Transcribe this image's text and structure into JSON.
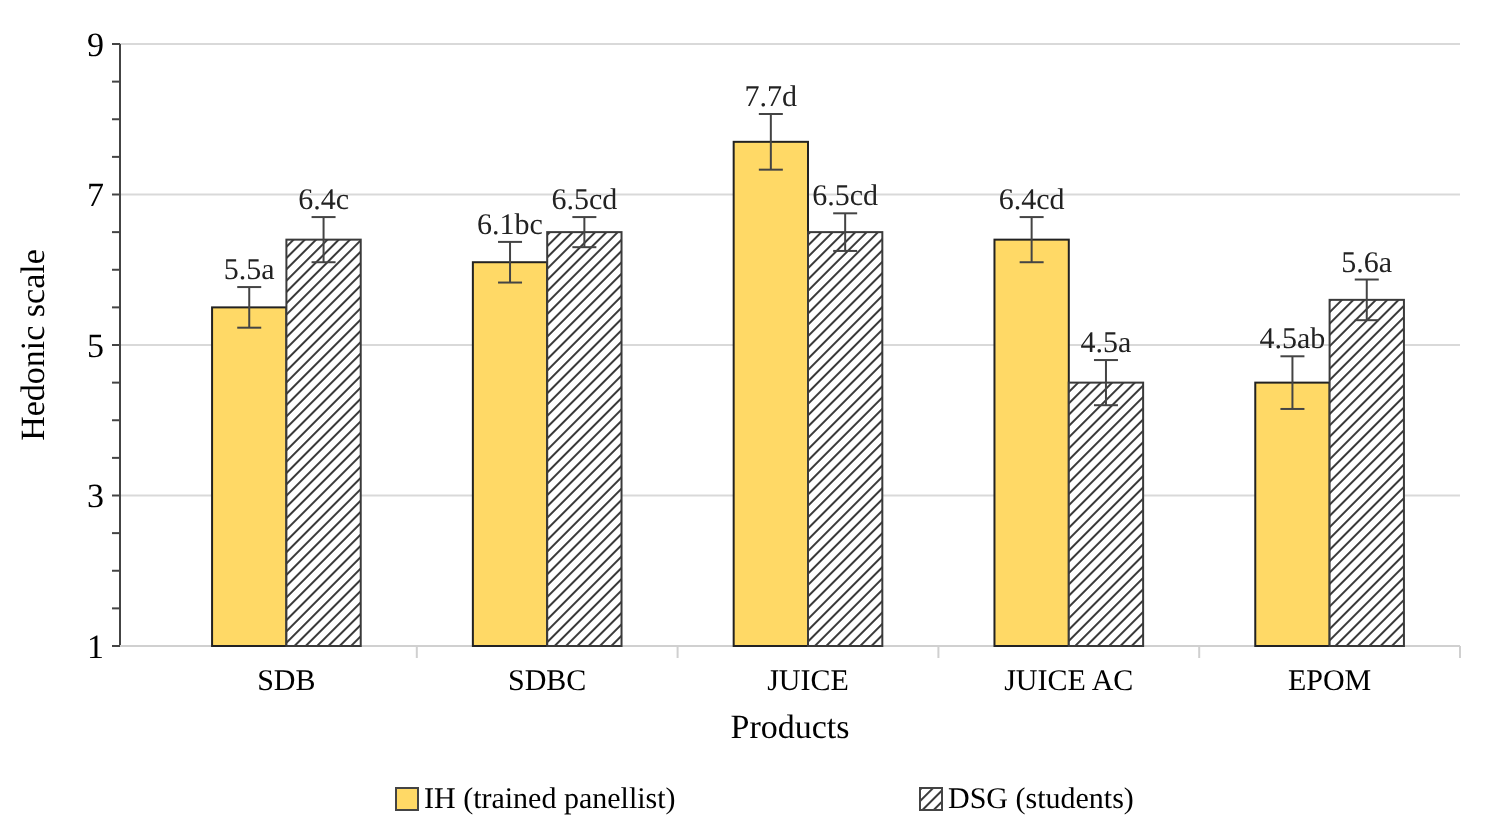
{
  "chart_data": {
    "type": "bar",
    "xlabel": "Products",
    "ylabel": "Hedonic scale",
    "categories": [
      "SDB",
      "SDBC",
      "JUICE",
      "JUICE AC",
      "EPOM"
    ],
    "series": [
      {
        "name": "IH (trained panellist)",
        "color": "#ffd966",
        "values": [
          5.5,
          6.1,
          7.7,
          6.4,
          4.5
        ],
        "errors": [
          0.27,
          0.27,
          0.37,
          0.3,
          0.35
        ],
        "value_labels": [
          "5.5a",
          "6.1bc",
          "7.7d",
          "6.4cd",
          "4.5ab"
        ]
      },
      {
        "name": "DSG (students)",
        "color": "#3a3a3a",
        "values": [
          6.4,
          6.5,
          6.5,
          4.5,
          5.6
        ],
        "errors": [
          0.3,
          0.2,
          0.25,
          0.3,
          0.27
        ],
        "value_labels": [
          "6.4c",
          "6.5cd",
          "6.5cd",
          "4.5a",
          "5.6a"
        ]
      }
    ],
    "ylim": [
      1,
      9
    ],
    "yticks": [
      1,
      3,
      5,
      7,
      9
    ],
    "grid": "y",
    "legend": "bottom"
  }
}
